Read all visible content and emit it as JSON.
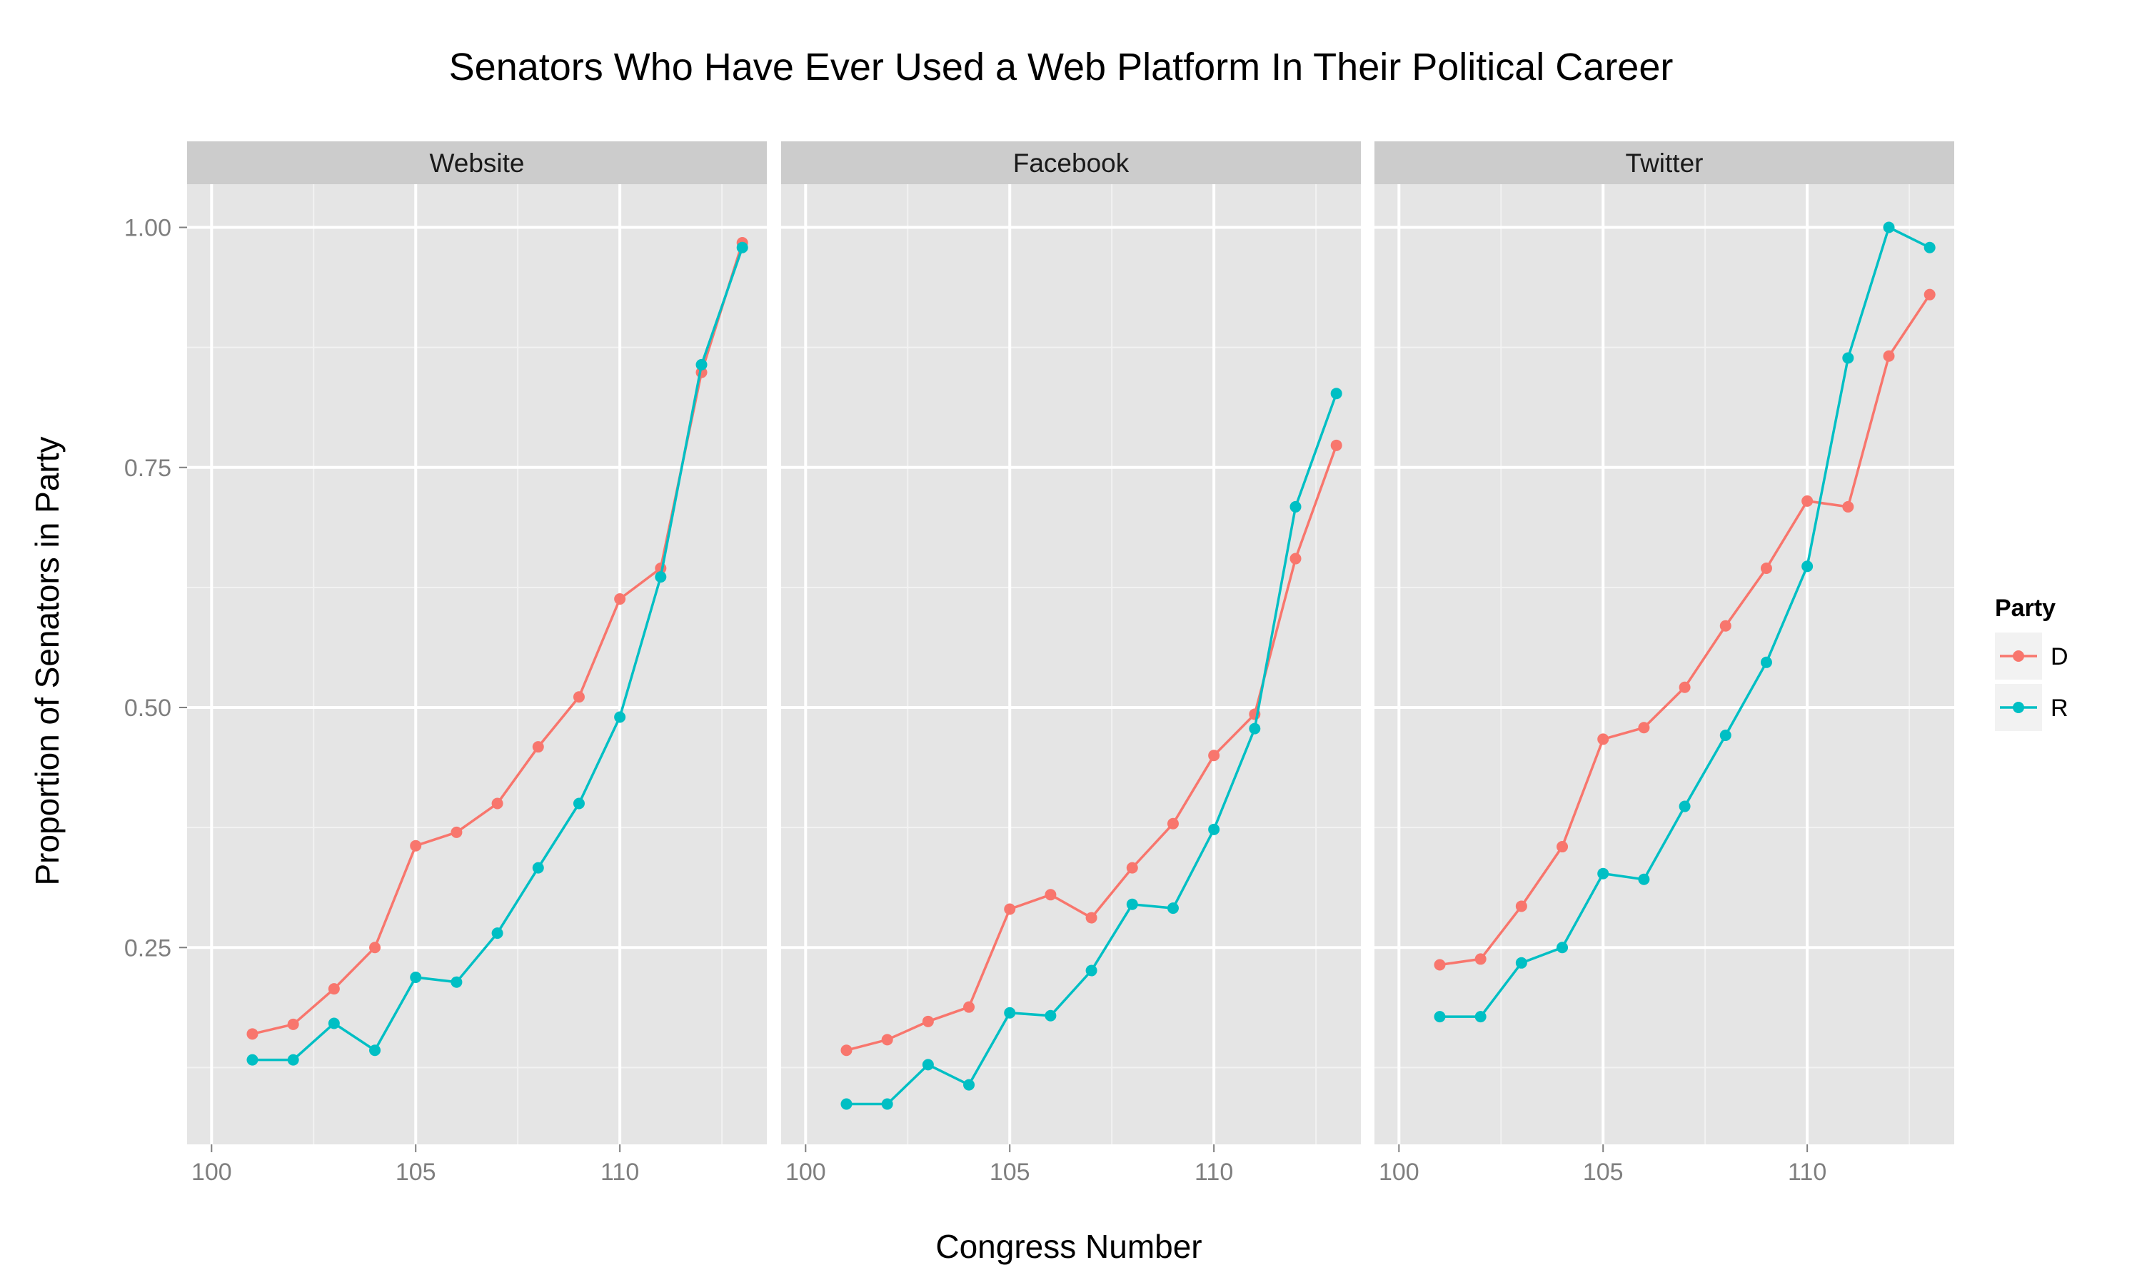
{
  "chart_data": {
    "type": "line",
    "title": "Senators Who Have Ever Used a Web Platform In Their Political Career",
    "xlabel": "Congress Number",
    "ylabel": "Proportion of Senators in Party",
    "xlim": [
      99.4,
      113.6
    ],
    "ylim": [
      0.045,
      1.045
    ],
    "x_ticks": [
      100,
      105,
      110
    ],
    "y_ticks": [
      0.25,
      0.5,
      0.75,
      1.0
    ],
    "x_tick_labels": [
      "100",
      "105",
      "110"
    ],
    "y_tick_labels": [
      "0.25",
      "0.50",
      "0.75",
      "1.00"
    ],
    "grid": true,
    "legend": {
      "title": "Party",
      "placement": "right",
      "entries": [
        {
          "name": "D",
          "color": "#F8766D"
        },
        {
          "name": "R",
          "color": "#00BFC4"
        }
      ]
    },
    "colors": {
      "D": "#F8766D",
      "R": "#00BFC4",
      "panel_bg": "#E5E5E5",
      "strip_bg": "#CCCCCC"
    },
    "x": [
      101,
      102,
      103,
      104,
      105,
      106,
      107,
      108,
      109,
      110,
      111,
      112,
      113
    ],
    "panels": [
      {
        "label": "Website",
        "series": [
          {
            "name": "D",
            "values": [
              0.16,
              0.17,
              0.207,
              0.25,
              0.356,
              0.37,
              0.4,
              0.459,
              0.511,
              0.613,
              0.645,
              0.849,
              0.984
            ]
          },
          {
            "name": "R",
            "values": [
              0.133,
              0.133,
              0.171,
              0.143,
              0.219,
              0.214,
              0.265,
              0.333,
              0.4,
              0.49,
              0.636,
              0.857,
              0.979
            ]
          }
        ]
      },
      {
        "label": "Facebook",
        "series": [
          {
            "name": "D",
            "values": [
              0.143,
              0.154,
              0.173,
              0.188,
              0.29,
              0.305,
              0.281,
              0.333,
              0.379,
              0.45,
              0.493,
              0.655,
              0.773
            ]
          },
          {
            "name": "R",
            "values": [
              0.087,
              0.087,
              0.128,
              0.107,
              0.182,
              0.179,
              0.226,
              0.295,
              0.291,
              0.373,
              0.478,
              0.709,
              0.827
            ]
          }
        ]
      },
      {
        "label": "Twitter",
        "series": [
          {
            "name": "D",
            "values": [
              0.232,
              0.238,
              0.293,
              0.355,
              0.467,
              0.479,
              0.521,
              0.585,
              0.645,
              0.715,
              0.709,
              0.866,
              0.93
            ]
          },
          {
            "name": "R",
            "values": [
              0.178,
              0.178,
              0.234,
              0.25,
              0.327,
              0.321,
              0.397,
              0.471,
              0.547,
              0.647,
              0.864,
              1.0,
              0.979
            ]
          }
        ]
      }
    ]
  }
}
